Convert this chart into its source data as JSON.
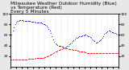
{
  "title": "Milwaukee Weather Outdoor Humidity (Blue)\nvs Temperature (Red)\nEvery 5 Minutes",
  "bg_color": "#e8e8e8",
  "plot_bg": "#ffffff",
  "grid_color": "#aaaaaa",
  "humidity_color": "#0000dd",
  "temp_color": "#dd0000",
  "ylim": [
    0,
    100
  ],
  "humidity_data": [
    55,
    60,
    68,
    75,
    80,
    84,
    86,
    87,
    88,
    88,
    88,
    88,
    87,
    87,
    86,
    86,
    86,
    86,
    86,
    85,
    85,
    85,
    85,
    84,
    84,
    84,
    84,
    83,
    83,
    82,
    81,
    80,
    79,
    77,
    75,
    72,
    68,
    63,
    57,
    51,
    47,
    44,
    42,
    41,
    40,
    39,
    39,
    38,
    38,
    37,
    37,
    38,
    39,
    40,
    42,
    44,
    46,
    48,
    50,
    52,
    54,
    55,
    56,
    57,
    58,
    58,
    59,
    59,
    60,
    60,
    59,
    58,
    57,
    56,
    54,
    52,
    50,
    48,
    46,
    46,
    47,
    48,
    50,
    52,
    55,
    58,
    62,
    64,
    66,
    67,
    68,
    68,
    67,
    66,
    65,
    64,
    63,
    62,
    61,
    60
  ],
  "temp_data": [
    14,
    14,
    14,
    14,
    14,
    14,
    14,
    14,
    14,
    14,
    14,
    14,
    14,
    14,
    14,
    14,
    15,
    15,
    15,
    15,
    15,
    15,
    15,
    16,
    16,
    16,
    16,
    16,
    17,
    17,
    17,
    18,
    18,
    19,
    20,
    21,
    22,
    23,
    24,
    26,
    27,
    28,
    29,
    30,
    31,
    32,
    33,
    34,
    35,
    35,
    35,
    35,
    35,
    34,
    34,
    33,
    33,
    32,
    32,
    31,
    31,
    30,
    30,
    29,
    29,
    29,
    28,
    28,
    27,
    27,
    26,
    26,
    26,
    26,
    25,
    25,
    25,
    25,
    25,
    25,
    25,
    25,
    25,
    25,
    25,
    25,
    25,
    25,
    25,
    25,
    25,
    25,
    25,
    25,
    25,
    25,
    25,
    25,
    25,
    26
  ],
  "n_points": 100,
  "marker_size": 1.5,
  "title_fontsize": 4.2,
  "tick_fontsize": 3.2,
  "grid_linestyle": ":",
  "grid_linewidth": 0.3
}
